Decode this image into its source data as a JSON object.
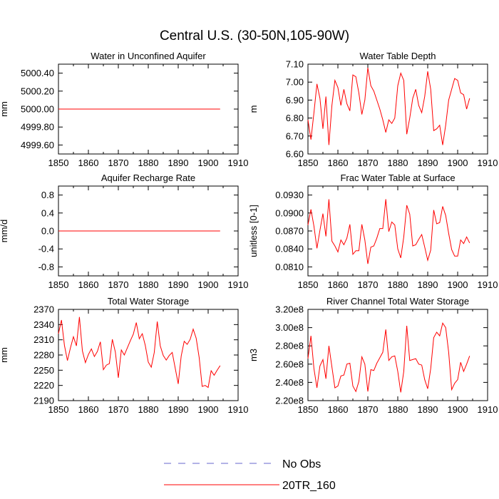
{
  "figure_title": "Central U.S. (30-50N,105-90W)",
  "legend": [
    {
      "label": "No Obs",
      "color": "#6666cc",
      "dash": true
    },
    {
      "label": "20TR_160",
      "color": "#ff0000",
      "dash": false
    }
  ],
  "chart_data": [
    {
      "type": "line",
      "title": "Water in Unconfined Aquifer",
      "ylabel": "mm",
      "xlim": [
        1850,
        1910
      ],
      "ylim": [
        4999.5,
        5000.5
      ],
      "xticks": [
        "1850",
        "1860",
        "1870",
        "1880",
        "1890",
        "1900",
        "1910"
      ],
      "yticks": [
        {
          "v": 5000.4,
          "label": "5000.40"
        },
        {
          "v": 5000.2,
          "label": "5000.20"
        },
        {
          "v": 5000.0,
          "label": "5000.00"
        },
        {
          "v": 4999.8,
          "label": "4999.80"
        },
        {
          "v": 4999.6,
          "label": "4999.60"
        }
      ],
      "series": [
        {
          "name": "20TR_160",
          "x_start": 1850,
          "x_step": 1,
          "values": [
            5000,
            5000,
            5000,
            5000,
            5000,
            5000,
            5000,
            5000,
            5000,
            5000,
            5000,
            5000,
            5000,
            5000,
            5000,
            5000,
            5000,
            5000,
            5000,
            5000,
            5000,
            5000,
            5000,
            5000,
            5000,
            5000,
            5000,
            5000,
            5000,
            5000,
            5000,
            5000,
            5000,
            5000,
            5000,
            5000,
            5000,
            5000,
            5000,
            5000,
            5000,
            5000,
            5000,
            5000,
            5000,
            5000,
            5000,
            5000,
            5000,
            5000,
            5000,
            5000,
            5000,
            5000,
            5000
          ]
        }
      ]
    },
    {
      "type": "line",
      "title": "Water Table Depth",
      "ylabel": "m",
      "xlim": [
        1850,
        1910
      ],
      "ylim": [
        6.6,
        7.1
      ],
      "xticks": [
        "1850",
        "1860",
        "1870",
        "1880",
        "1890",
        "1900",
        "1910"
      ],
      "yticks": [
        {
          "v": 7.1,
          "label": "7.10"
        },
        {
          "v": 7.0,
          "label": "7.00"
        },
        {
          "v": 6.9,
          "label": "6.90"
        },
        {
          "v": 6.8,
          "label": "6.80"
        },
        {
          "v": 6.7,
          "label": "6.70"
        },
        {
          "v": 6.6,
          "label": "6.60"
        }
      ],
      "series": [
        {
          "name": "20TR_160",
          "x_start": 1850,
          "x_step": 1,
          "values": [
            6.79,
            6.68,
            6.83,
            6.99,
            6.91,
            6.74,
            6.92,
            6.65,
            6.87,
            7.01,
            6.97,
            6.87,
            6.96,
            6.88,
            6.84,
            7.04,
            7.03,
            6.94,
            6.82,
            6.9,
            7.08,
            6.98,
            6.95,
            6.9,
            6.85,
            6.79,
            6.72,
            6.79,
            6.77,
            6.8,
            6.98,
            7.05,
            7.01,
            6.71,
            6.8,
            6.91,
            6.96,
            6.87,
            6.83,
            6.92,
            7.06,
            6.96,
            6.73,
            6.74,
            6.76,
            6.65,
            6.76,
            6.9,
            6.96,
            7.02,
            7.01,
            6.94,
            6.93,
            6.85,
            6.91
          ]
        }
      ]
    },
    {
      "type": "line",
      "title": "Aquifer Recharge Rate",
      "ylabel": "mm/d",
      "xlim": [
        1850,
        1910
      ],
      "ylim": [
        -1.0,
        1.0
      ],
      "xticks": [
        "1850",
        "1860",
        "1870",
        "1880",
        "1890",
        "1900",
        "1910"
      ],
      "yticks": [
        {
          "v": 0.8,
          "label": "0.8"
        },
        {
          "v": 0.4,
          "label": "0.4"
        },
        {
          "v": 0.0,
          "label": "0.0"
        },
        {
          "v": -0.4,
          "label": "-0.4"
        },
        {
          "v": -0.8,
          "label": "-0.8"
        }
      ],
      "series": [
        {
          "name": "20TR_160",
          "x_start": 1850,
          "x_step": 1,
          "values": [
            0,
            0,
            0,
            0,
            0,
            0,
            0,
            0,
            0,
            0,
            0,
            0,
            0,
            0,
            0,
            0,
            0,
            0,
            0,
            0,
            0,
            0,
            0,
            0,
            0,
            0,
            0,
            0,
            0,
            0,
            0,
            0,
            0,
            0,
            0,
            0,
            0,
            0,
            0,
            0,
            0,
            0,
            0,
            0,
            0,
            0,
            0,
            0,
            0,
            0,
            0,
            0,
            0,
            0,
            0
          ]
        }
      ]
    },
    {
      "type": "line",
      "title": "Frac Water Table at Surface",
      "ylabel": "unitless [0-1]",
      "xlim": [
        1850,
        1910
      ],
      "ylim": [
        0.0795,
        0.0945
      ],
      "xticks": [
        "1850",
        "1860",
        "1870",
        "1880",
        "1890",
        "1900",
        "1910"
      ],
      "yticks": [
        {
          "v": 0.093,
          "label": "0.0930"
        },
        {
          "v": 0.09,
          "label": "0.0900"
        },
        {
          "v": 0.087,
          "label": "0.0870"
        },
        {
          "v": 0.084,
          "label": "0.0840"
        },
        {
          "v": 0.081,
          "label": "0.0810"
        }
      ],
      "series": [
        {
          "name": "20TR_160",
          "x_start": 1850,
          "x_step": 1,
          "values": [
            0.088,
            0.0906,
            0.0878,
            0.0841,
            0.0871,
            0.0899,
            0.0861,
            0.0923,
            0.0853,
            0.0845,
            0.0835,
            0.0855,
            0.0847,
            0.0858,
            0.0881,
            0.0831,
            0.0837,
            0.0837,
            0.0881,
            0.0855,
            0.0815,
            0.0843,
            0.0845,
            0.0858,
            0.0874,
            0.0874,
            0.0923,
            0.0869,
            0.0885,
            0.088,
            0.084,
            0.0825,
            0.086,
            0.0913,
            0.0898,
            0.0845,
            0.0847,
            0.0856,
            0.0864,
            0.0843,
            0.0821,
            0.0838,
            0.0905,
            0.0882,
            0.0884,
            0.0911,
            0.0896,
            0.0866,
            0.0839,
            0.0828,
            0.0828,
            0.0855,
            0.0849,
            0.086,
            0.085
          ]
        }
      ]
    },
    {
      "type": "line",
      "title": "Total Water Storage",
      "ylabel": "mm",
      "xlim": [
        1850,
        1910
      ],
      "ylim": [
        2190,
        2370
      ],
      "xticks": [
        "1850",
        "1860",
        "1870",
        "1880",
        "1890",
        "1900",
        "1910"
      ],
      "yticks": [
        {
          "v": 2370,
          "label": "2370"
        },
        {
          "v": 2340,
          "label": "2340"
        },
        {
          "v": 2310,
          "label": "2310"
        },
        {
          "v": 2280,
          "label": "2280"
        },
        {
          "v": 2250,
          "label": "2250"
        },
        {
          "v": 2220,
          "label": "2220"
        },
        {
          "v": 2190,
          "label": "2190"
        }
      ],
      "series": [
        {
          "name": "20TR_160",
          "x_start": 1850,
          "x_step": 1,
          "values": [
            2322,
            2349,
            2299,
            2269,
            2294,
            2316,
            2298,
            2355,
            2288,
            2265,
            2281,
            2292,
            2277,
            2287,
            2306,
            2251,
            2260,
            2263,
            2311,
            2286,
            2235,
            2290,
            2280,
            2294,
            2308,
            2321,
            2344,
            2312,
            2322,
            2299,
            2266,
            2256,
            2285,
            2346,
            2298,
            2279,
            2270,
            2279,
            2285,
            2254,
            2223,
            2278,
            2307,
            2301,
            2311,
            2331,
            2313,
            2275,
            2218,
            2220,
            2216,
            2249,
            2240,
            2250,
            2259
          ]
        }
      ]
    },
    {
      "type": "line",
      "title": "River Channel Total Water Storage",
      "ylabel": "m3",
      "xlim": [
        1850,
        1910
      ],
      "ylim": [
        220000000.0,
        320000000.0
      ],
      "xticks": [
        "1850",
        "1860",
        "1870",
        "1880",
        "1890",
        "1900",
        "1910"
      ],
      "yticks": [
        {
          "v": 320000000.0,
          "label": "3.20e8"
        },
        {
          "v": 300000000.0,
          "label": "3.00e8"
        },
        {
          "v": 280000000.0,
          "label": "2.80e8"
        },
        {
          "v": 260000000.0,
          "label": "2.60e8"
        },
        {
          "v": 240000000.0,
          "label": "2.40e8"
        },
        {
          "v": 220000000.0,
          "label": "2.20e8"
        }
      ],
      "series": [
        {
          "name": "20TR_160",
          "x_start": 1850,
          "x_step": 1,
          "values": [
            266000000.0,
            291000000.0,
            255000000.0,
            234000000.0,
            258000000.0,
            265000000.0,
            244000000.0,
            280000000.0,
            257000000.0,
            234000000.0,
            236000000.0,
            247000000.0,
            248000000.0,
            260000000.0,
            261000000.0,
            236000000.0,
            230000000.0,
            241000000.0,
            268000000.0,
            260000000.0,
            230000000.0,
            254000000.0,
            253000000.0,
            261000000.0,
            267000000.0,
            273000000.0,
            298000000.0,
            264000000.0,
            268000000.0,
            269000000.0,
            252000000.0,
            229000000.0,
            252000000.0,
            302000000.0,
            264000000.0,
            265000000.0,
            266000000.0,
            260000000.0,
            259000000.0,
            243000000.0,
            233000000.0,
            255000000.0,
            289000000.0,
            295000000.0,
            291000000.0,
            305000000.0,
            300000000.0,
            273000000.0,
            232000000.0,
            239000000.0,
            243000000.0,
            262000000.0,
            252000000.0,
            260000000.0,
            269000000.0
          ]
        }
      ]
    }
  ]
}
